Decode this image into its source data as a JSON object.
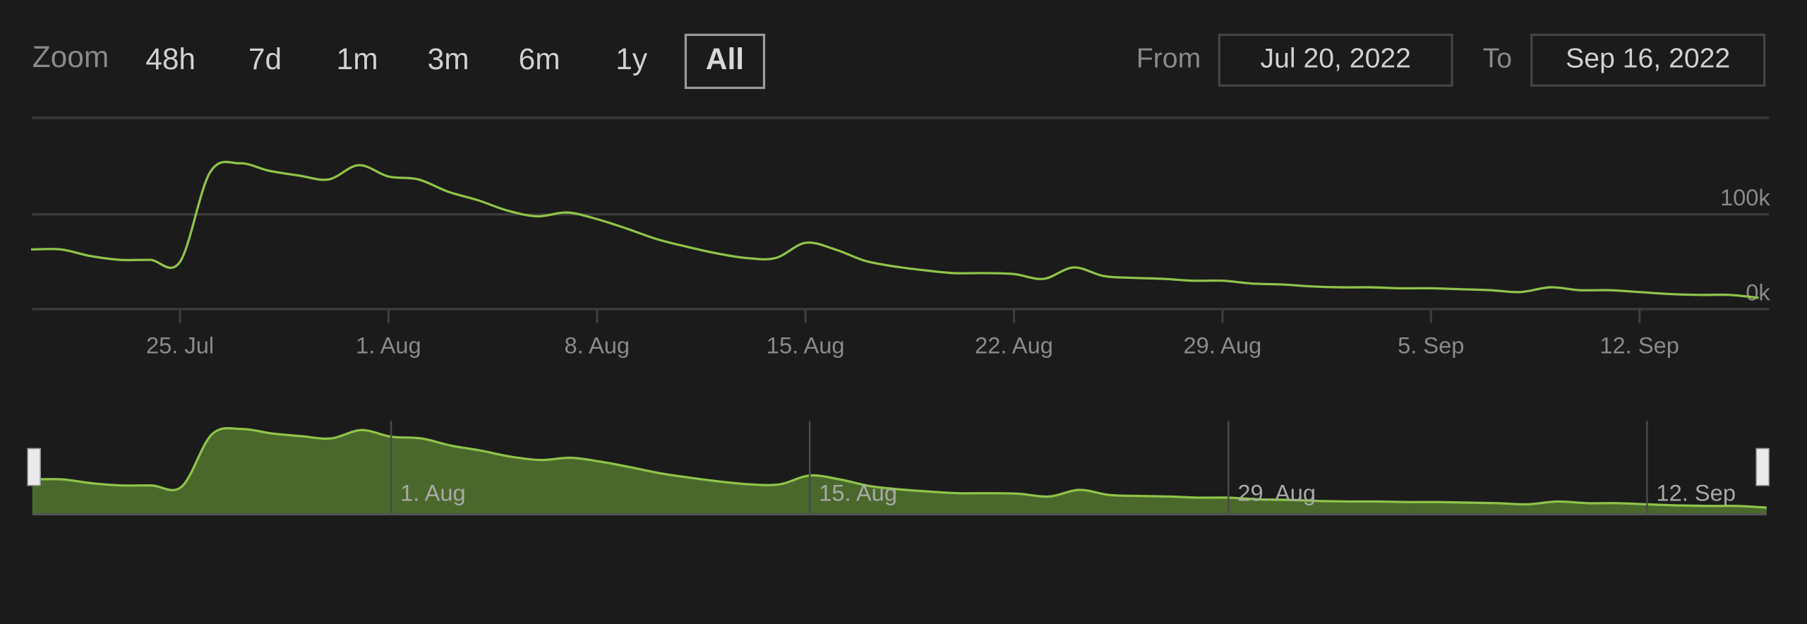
{
  "zoom": {
    "label": "Zoom",
    "buttons": [
      "48h",
      "7d",
      "1m",
      "3m",
      "6m",
      "1y",
      "All"
    ],
    "selected": 6
  },
  "range": {
    "from_label": "From",
    "from": "Jul 20, 2022",
    "to_label": "To",
    "to": "Sep 16, 2022"
  },
  "chart_data": {
    "type": "line",
    "color": "#8fc34b",
    "x": [
      "2022-07-20",
      "2022-07-21",
      "2022-07-22",
      "2022-07-23",
      "2022-07-24",
      "2022-07-25",
      "2022-07-26",
      "2022-07-27",
      "2022-07-28",
      "2022-07-29",
      "2022-07-30",
      "2022-07-31",
      "2022-08-01",
      "2022-08-02",
      "2022-08-03",
      "2022-08-04",
      "2022-08-05",
      "2022-08-06",
      "2022-08-07",
      "2022-08-08",
      "2022-08-09",
      "2022-08-10",
      "2022-08-11",
      "2022-08-12",
      "2022-08-13",
      "2022-08-14",
      "2022-08-15",
      "2022-08-16",
      "2022-08-17",
      "2022-08-18",
      "2022-08-19",
      "2022-08-20",
      "2022-08-21",
      "2022-08-22",
      "2022-08-23",
      "2022-08-24",
      "2022-08-25",
      "2022-08-26",
      "2022-08-27",
      "2022-08-28",
      "2022-08-29",
      "2022-08-30",
      "2022-08-31",
      "2022-09-01",
      "2022-09-02",
      "2022-09-03",
      "2022-09-04",
      "2022-09-05",
      "2022-09-06",
      "2022-09-07",
      "2022-09-08",
      "2022-09-09",
      "2022-09-10",
      "2022-09-11",
      "2022-09-12",
      "2022-09-13",
      "2022-09-14",
      "2022-09-15",
      "2022-09-16"
    ],
    "values": [
      63000,
      63000,
      56000,
      52000,
      52000,
      50000,
      144000,
      154000,
      146000,
      141000,
      137000,
      152000,
      140000,
      137000,
      124000,
      115000,
      104000,
      98000,
      102000,
      95000,
      85000,
      74000,
      66000,
      59000,
      54000,
      54000,
      70000,
      63000,
      51000,
      45000,
      41000,
      38000,
      38000,
      37000,
      32000,
      44000,
      35000,
      33000,
      32000,
      30000,
      30000,
      27000,
      26000,
      24000,
      23000,
      23000,
      22000,
      22000,
      21000,
      20000,
      18000,
      23000,
      20000,
      20000,
      18000,
      16000,
      15000,
      15000,
      12000
    ],
    "xlim": [
      "2022-07-20",
      "2022-09-16"
    ],
    "xticks": [
      {
        "value": "2022-07-25",
        "label": "25. Jul"
      },
      {
        "value": "2022-08-01",
        "label": "1. Aug"
      },
      {
        "value": "2022-08-08",
        "label": "8. Aug"
      },
      {
        "value": "2022-08-15",
        "label": "15. Aug"
      },
      {
        "value": "2022-08-22",
        "label": "22. Aug"
      },
      {
        "value": "2022-08-29",
        "label": "29. Aug"
      },
      {
        "value": "2022-09-05",
        "label": "5. Sep"
      },
      {
        "value": "2022-09-12",
        "label": "12. Sep"
      }
    ],
    "ylim": [
      0,
      202000
    ],
    "yticks": [
      {
        "value": 0,
        "label": "0k"
      },
      {
        "value": 100000,
        "label": "100k"
      }
    ],
    "grid": true,
    "navigator": {
      "fill": "#4a682b",
      "xticks": [
        {
          "value": "2022-08-01",
          "label": "1. Aug"
        },
        {
          "value": "2022-08-15",
          "label": "15. Aug"
        },
        {
          "value": "2022-08-29",
          "label": "29. Aug"
        },
        {
          "value": "2022-09-12",
          "label": "12. Sep"
        }
      ]
    }
  }
}
